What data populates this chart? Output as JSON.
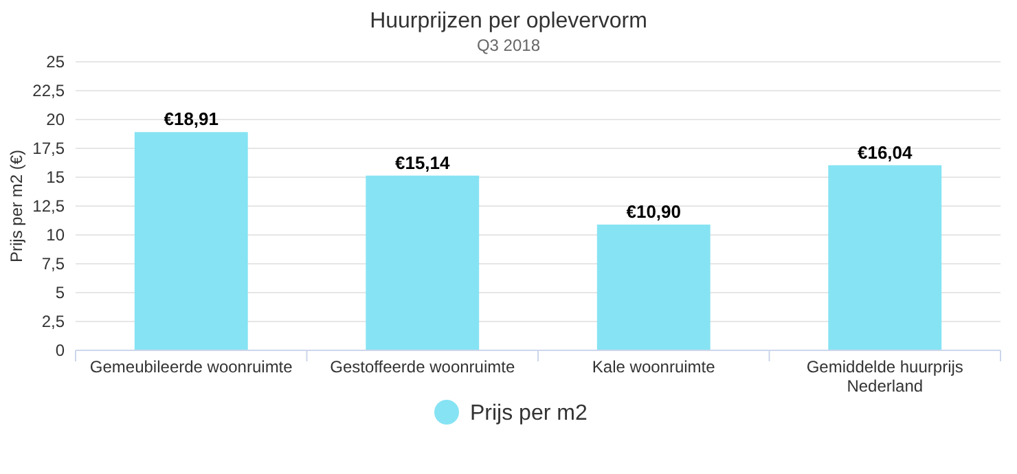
{
  "chart_data": {
    "type": "bar",
    "title": "Huurprijzen per oplevervorm",
    "subtitle": "Q3 2018",
    "ylabel": "Prijs per m2 (€)",
    "categories": [
      "Gemeubileerde woonruimte",
      "Gestoffeerde woonruimte",
      "Kale woonruimte",
      "Gemiddelde huurprijs Nederland"
    ],
    "series": [
      {
        "name": "Prijs per m2",
        "color": "#86e3f3",
        "values": [
          18.91,
          15.14,
          10.9,
          16.04
        ],
        "value_labels": [
          "€18,91",
          "€15,14",
          "€10,90",
          "€16,04"
        ]
      }
    ],
    "ylim": [
      0,
      25
    ],
    "yticks": [
      0,
      {
        "value": 2.5,
        "label": "2,5"
      },
      5,
      {
        "value": 7.5,
        "label": "7,5"
      },
      10,
      {
        "value": 12.5,
        "label": "12,5"
      },
      15,
      {
        "value": 17.5,
        "label": "17,5"
      },
      20,
      {
        "value": 22.5,
        "label": "22,5"
      },
      25
    ],
    "grid": "y",
    "legend": "bottom"
  }
}
